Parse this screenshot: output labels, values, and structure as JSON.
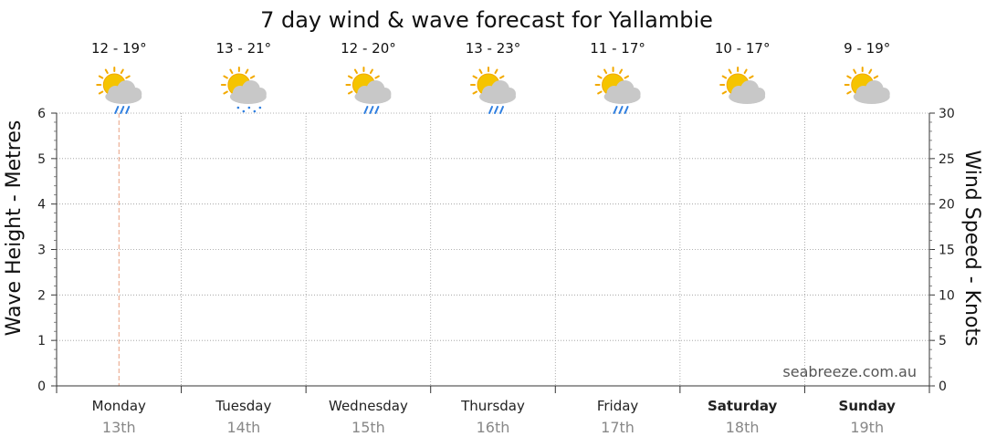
{
  "chart_data": {
    "type": "line",
    "title": "7 day wind & wave forecast for Yallambie",
    "ylabel_left": "Wave Height - Metres",
    "ylabel_right": "Wind Speed - Knots",
    "ylim_left": [
      0,
      6
    ],
    "ylim_right": [
      0,
      30
    ],
    "yticks_left": [
      "0",
      "1",
      "2",
      "3",
      "4",
      "5",
      "6"
    ],
    "yticks_right": [
      "0",
      "5",
      "10",
      "15",
      "20",
      "25",
      "30"
    ],
    "grid": true,
    "watermark": "seabreeze.com.au",
    "current_marker_day": 0,
    "days": [
      {
        "name": "Monday",
        "date": "13th",
        "temp": "12 - 19°",
        "icon": "sun-cloud-rain-icon",
        "weekend": false
      },
      {
        "name": "Tuesday",
        "date": "14th",
        "temp": "13 - 21°",
        "icon": "sun-cloud-showers-icon",
        "weekend": false
      },
      {
        "name": "Wednesday",
        "date": "15th",
        "temp": "12 - 20°",
        "icon": "sun-cloud-rain-icon",
        "weekend": false
      },
      {
        "name": "Thursday",
        "date": "16th",
        "temp": "13 - 23°",
        "icon": "sun-cloud-rain-icon",
        "weekend": false
      },
      {
        "name": "Friday",
        "date": "17th",
        "temp": "11 - 17°",
        "icon": "sun-cloud-rain-icon",
        "weekend": false
      },
      {
        "name": "Saturday",
        "date": "18th",
        "temp": "10 - 17°",
        "icon": "partly-cloudy-icon",
        "weekend": true
      },
      {
        "name": "Sunday",
        "date": "19th",
        "temp": "9 - 19°",
        "icon": "partly-cloudy-icon",
        "weekend": true
      }
    ],
    "series": []
  },
  "colors": {
    "sun": "#f5c400",
    "sun_rays": "#f2a900",
    "cloud": "#c8c8c8",
    "rain": "#2f7fe0",
    "grid": "#999999",
    "marker": "#e8a080"
  }
}
